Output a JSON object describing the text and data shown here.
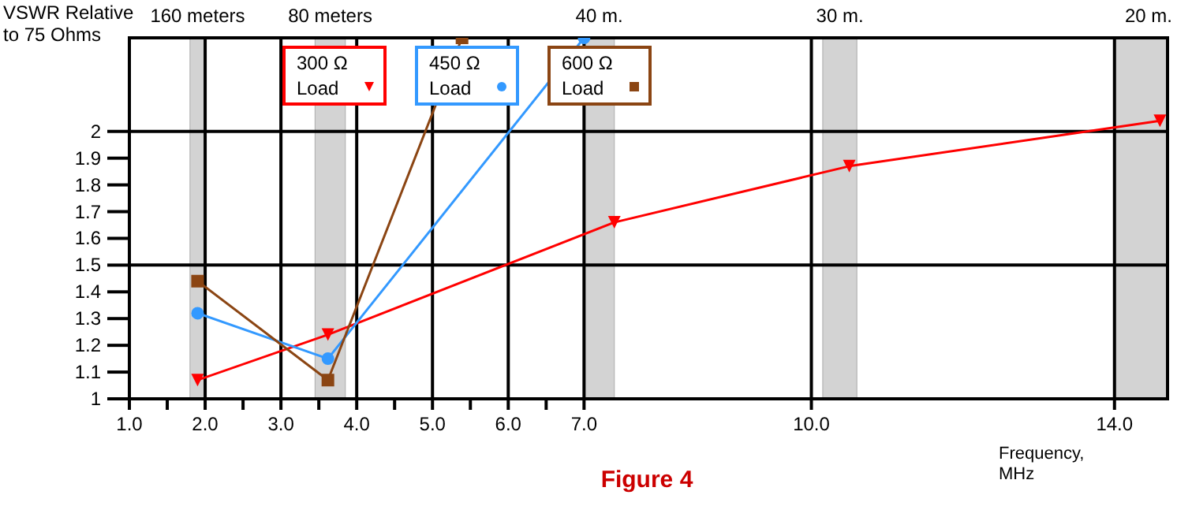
{
  "chart_data": {
    "type": "line",
    "xlabel": "Frequency, MHz",
    "ylabel": "VSWR Relative to 75 Ohms",
    "xlim": [
      1,
      14.7
    ],
    "ylim": [
      1,
      2.35
    ],
    "xticks": [
      {
        "value": 1,
        "label": "1.0"
      },
      {
        "value": 1.5,
        "label": null
      },
      {
        "value": 2,
        "label": "2.0"
      },
      {
        "value": 2.5,
        "label": null
      },
      {
        "value": 3,
        "label": "3.0"
      },
      {
        "value": 3.5,
        "label": null
      },
      {
        "value": 4,
        "label": "4.0"
      },
      {
        "value": 4.5,
        "label": null
      },
      {
        "value": 5,
        "label": "5.0"
      },
      {
        "value": 5.5,
        "label": null
      },
      {
        "value": 6,
        "label": "6.0"
      },
      {
        "value": 6.5,
        "label": null
      },
      {
        "value": 7,
        "label": "7.0"
      },
      {
        "value": 10,
        "label": "10.0"
      },
      {
        "value": 14,
        "label": "14.0"
      }
    ],
    "yticks": [
      1,
      1.1,
      1.2,
      1.3,
      1.4,
      1.5,
      1.6,
      1.7,
      1.8,
      1.9,
      2
    ],
    "grid": "x",
    "legend": "top",
    "ref_lines": [
      {
        "axis": "y",
        "value": 1.5
      },
      {
        "axis": "y",
        "value": 2
      }
    ],
    "bands": [
      {
        "axis": "x",
        "from": 1.8,
        "to": 2,
        "label": "160 meters",
        "color": "#d3d3d3"
      },
      {
        "axis": "x",
        "from": 3.45,
        "to": 3.85,
        "label": "80 meters",
        "color": "#d3d3d3"
      },
      {
        "axis": "x",
        "from": 7,
        "to": 7.4,
        "label": "40 m.",
        "color": "#d3d3d3"
      },
      {
        "axis": "x",
        "from": 10.15,
        "to": 10.6,
        "label": "30 m.",
        "color": "#d3d3d3"
      },
      {
        "axis": "x",
        "from": 14,
        "to": 14.7,
        "label": "20 m.",
        "color": "#d3d3d3"
      }
    ],
    "series": [
      {
        "name": "300 Ω Load",
        "color": "#ff0000",
        "marker": "triangle",
        "x": [
          1.9,
          3.62,
          7.4,
          10.5,
          14.6
        ],
        "values": [
          1.07,
          1.24,
          1.66,
          1.87,
          2.04
        ]
      },
      {
        "name": "450 Ω Load",
        "color": "#3399ff",
        "marker": "circle",
        "x": [
          1.9,
          3.62,
          7.0
        ],
        "values": [
          1.32,
          1.15,
          2.35
        ]
      },
      {
        "name": "600 Ω Load",
        "color": "#8b4513",
        "marker": "square",
        "x": [
          1.9,
          3.62,
          5.39
        ],
        "values": [
          1.44,
          1.07,
          2.35
        ]
      }
    ],
    "annotations": [
      "Figure 4"
    ]
  }
}
